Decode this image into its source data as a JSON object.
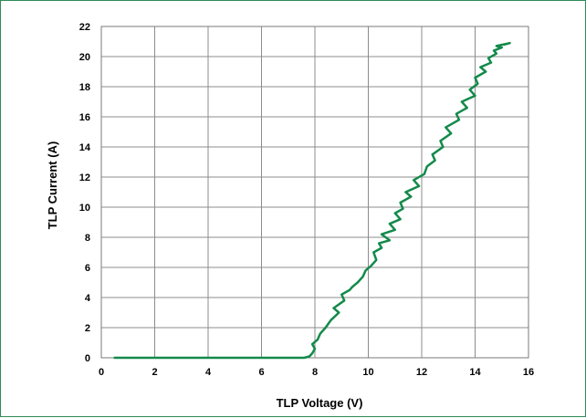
{
  "chart_data": {
    "type": "line",
    "title": "",
    "xlabel": "TLP Voltage (V)",
    "ylabel": "TLP Current (A)",
    "xlim": [
      0,
      16
    ],
    "ylim": [
      0,
      22
    ],
    "xticks": [
      0,
      2,
      4,
      6,
      8,
      10,
      12,
      14,
      16
    ],
    "yticks": [
      0,
      2,
      4,
      6,
      8,
      10,
      12,
      14,
      16,
      18,
      20,
      22
    ],
    "grid": true,
    "legend": "none",
    "line_color": "#138a4b",
    "series": [
      {
        "x": [
          0.5,
          2.0,
          4.0,
          6.0,
          7.6,
          7.8,
          7.9,
          8.0,
          7.9,
          8.1,
          8.2,
          8.4,
          8.6,
          8.9,
          8.7,
          9.1,
          9.0,
          9.3,
          9.4,
          9.6,
          9.8,
          9.9,
          10.1,
          10.3,
          10.2,
          10.5,
          10.4,
          10.8,
          10.5,
          11.0,
          10.8,
          11.2,
          11.0,
          11.3,
          11.2,
          11.6,
          11.4,
          11.9,
          11.7,
          12.1,
          12.2,
          12.5,
          12.4,
          12.8,
          12.7,
          13.1,
          12.9,
          13.4,
          13.3,
          13.7,
          13.5,
          14.0,
          13.8,
          14.1,
          14.0,
          14.4,
          14.2,
          14.6,
          14.5,
          14.8,
          14.7,
          15.0,
          14.8,
          15.3,
          15.1
        ],
        "y": [
          0,
          0,
          0,
          0,
          0,
          0.1,
          0.3,
          0.6,
          0.9,
          1.2,
          1.6,
          2.0,
          2.5,
          3.0,
          3.3,
          3.8,
          4.2,
          4.5,
          4.7,
          5.0,
          5.4,
          5.8,
          6.1,
          6.5,
          7.0,
          7.3,
          7.6,
          7.8,
          8.2,
          8.5,
          8.9,
          9.2,
          9.6,
          9.9,
          10.3,
          10.7,
          11.0,
          11.4,
          11.8,
          12.2,
          12.7,
          13.1,
          13.5,
          14.0,
          14.4,
          14.9,
          15.3,
          15.8,
          16.2,
          16.6,
          17.0,
          17.4,
          17.8,
          18.2,
          18.6,
          19.0,
          19.3,
          19.6,
          19.9,
          20.2,
          20.4,
          20.6,
          20.7,
          20.9,
          20.8
        ]
      }
    ]
  }
}
